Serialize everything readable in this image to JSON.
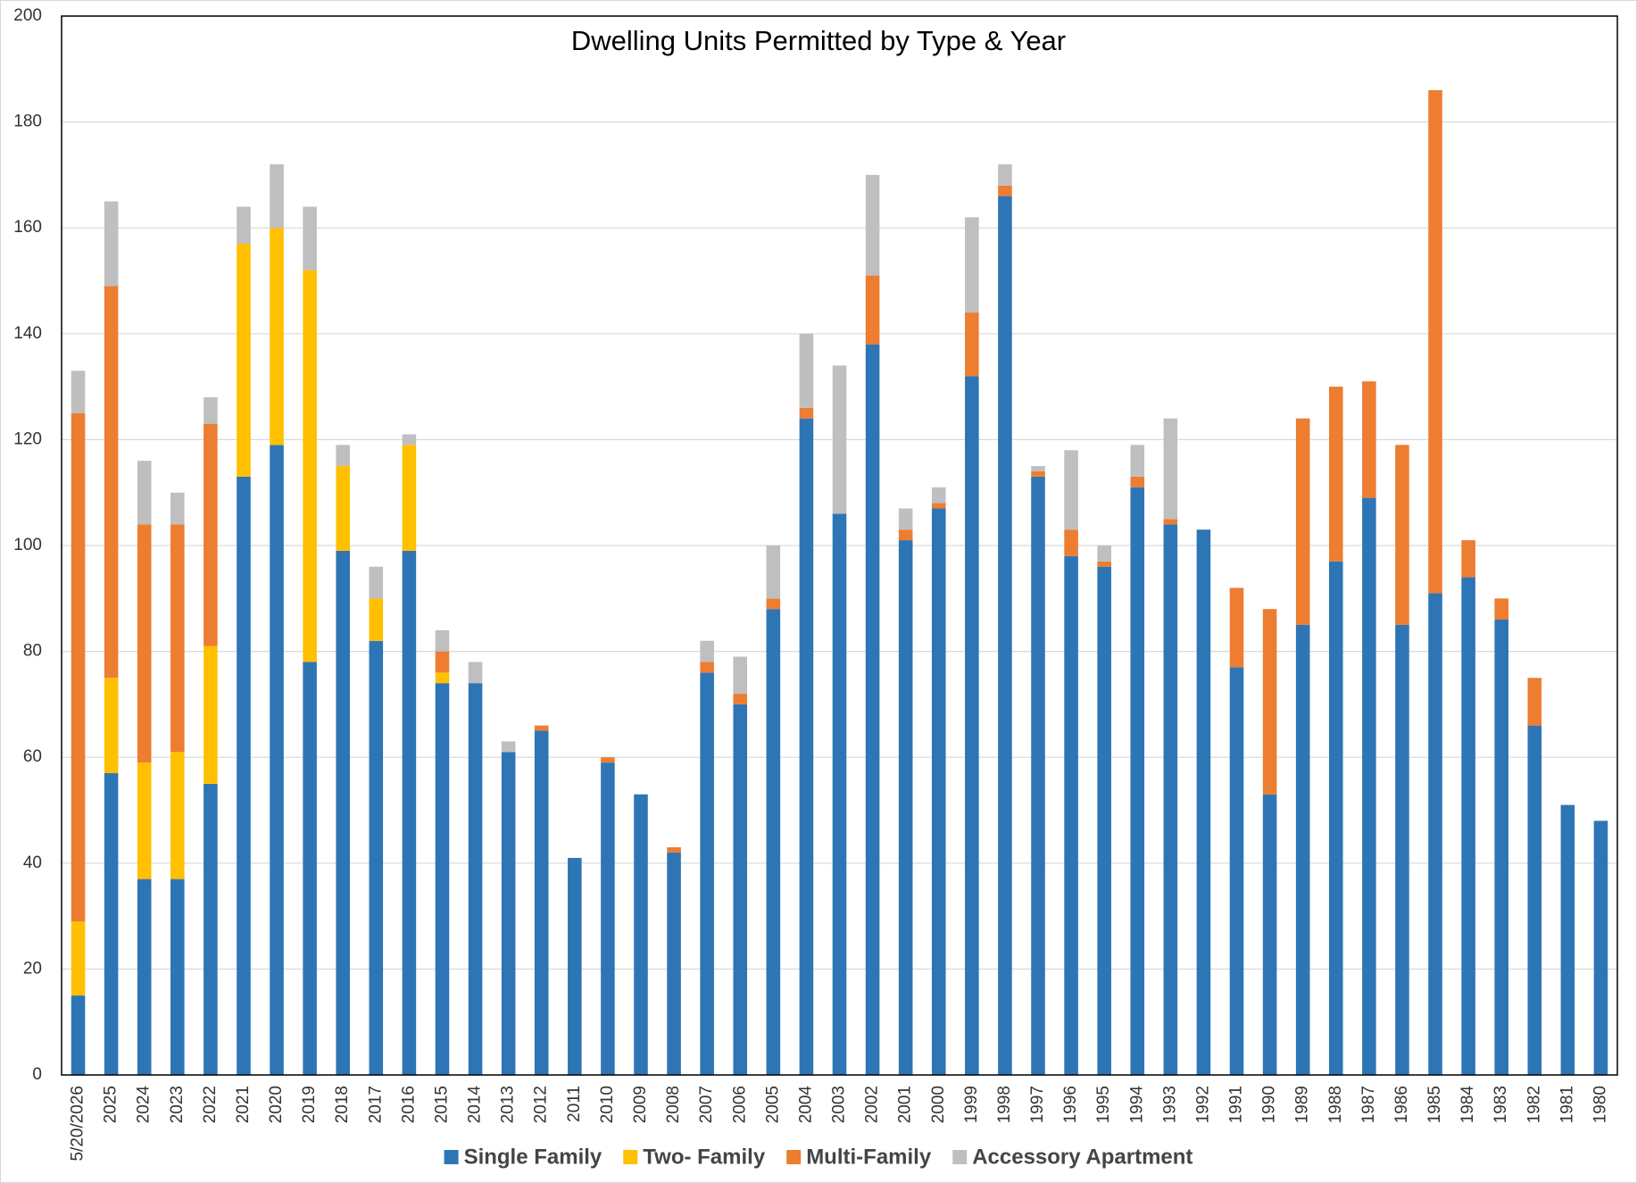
{
  "chart_data": {
    "type": "stacked-bar",
    "title": "Dwelling Units Permitted by Type & Year",
    "categories": [
      "5/20/2026",
      "2025",
      "2024",
      "2023",
      "2022",
      "2021",
      "2020",
      "2019",
      "2018",
      "2017",
      "2016",
      "2015",
      "2014",
      "2013",
      "2012",
      "2011",
      "2010",
      "2009",
      "2008",
      "2007",
      "2006",
      "2005",
      "2004",
      "2003",
      "2002",
      "2001",
      "2000",
      "1999",
      "1998",
      "1997",
      "1996",
      "1995",
      "1994",
      "1993",
      "1992",
      "1991",
      "1990",
      "1989",
      "1988",
      "1987",
      "1986",
      "1985",
      "1984",
      "1983",
      "1982",
      "1981",
      "1980"
    ],
    "series": [
      {
        "name": "Single Family",
        "color": "#2e75b6",
        "values": [
          15,
          57,
          37,
          37,
          55,
          113,
          119,
          78,
          99,
          82,
          99,
          74,
          74,
          61,
          65,
          41,
          59,
          53,
          42,
          76,
          70,
          88,
          124,
          106,
          138,
          101,
          107,
          132,
          166,
          113,
          98,
          96,
          111,
          104,
          103,
          77,
          53,
          85,
          97,
          109,
          85,
          91,
          94,
          86,
          66,
          51,
          48
        ]
      },
      {
        "name": "Two- Family",
        "color": "#ffc000",
        "values": [
          14,
          18,
          22,
          24,
          26,
          44,
          41,
          74,
          16,
          8,
          20,
          2,
          0,
          0,
          0,
          0,
          0,
          0,
          0,
          0,
          0,
          0,
          0,
          0,
          0,
          0,
          0,
          0,
          0,
          0,
          0,
          0,
          0,
          0,
          0,
          0,
          0,
          0,
          0,
          0,
          0,
          0,
          0,
          0,
          0,
          0,
          0
        ]
      },
      {
        "name": "Multi-Family",
        "color": "#ed7d31",
        "values": [
          96,
          74,
          45,
          43,
          42,
          0,
          0,
          0,
          0,
          0,
          0,
          4,
          0,
          0,
          1,
          0,
          1,
          0,
          1,
          2,
          2,
          2,
          2,
          0,
          13,
          2,
          1,
          12,
          2,
          1,
          5,
          1,
          2,
          1,
          0,
          15,
          35,
          39,
          33,
          22,
          34,
          95,
          7,
          4,
          9,
          0,
          0
        ]
      },
      {
        "name": "Accessory Apartment",
        "color": "#bfbfbf",
        "values": [
          8,
          16,
          12,
          6,
          5,
          7,
          12,
          12,
          4,
          6,
          2,
          4,
          4,
          2,
          0,
          0,
          0,
          0,
          0,
          4,
          7,
          10,
          14,
          28,
          19,
          4,
          3,
          18,
          4,
          1,
          15,
          3,
          6,
          19,
          0,
          0,
          0,
          0,
          0,
          0,
          0,
          0,
          0,
          0,
          0,
          0,
          0
        ]
      }
    ],
    "ylim": [
      0,
      200
    ],
    "yticks": [
      0,
      20,
      40,
      60,
      80,
      100,
      120,
      140,
      160,
      180,
      200
    ],
    "grid": true
  }
}
